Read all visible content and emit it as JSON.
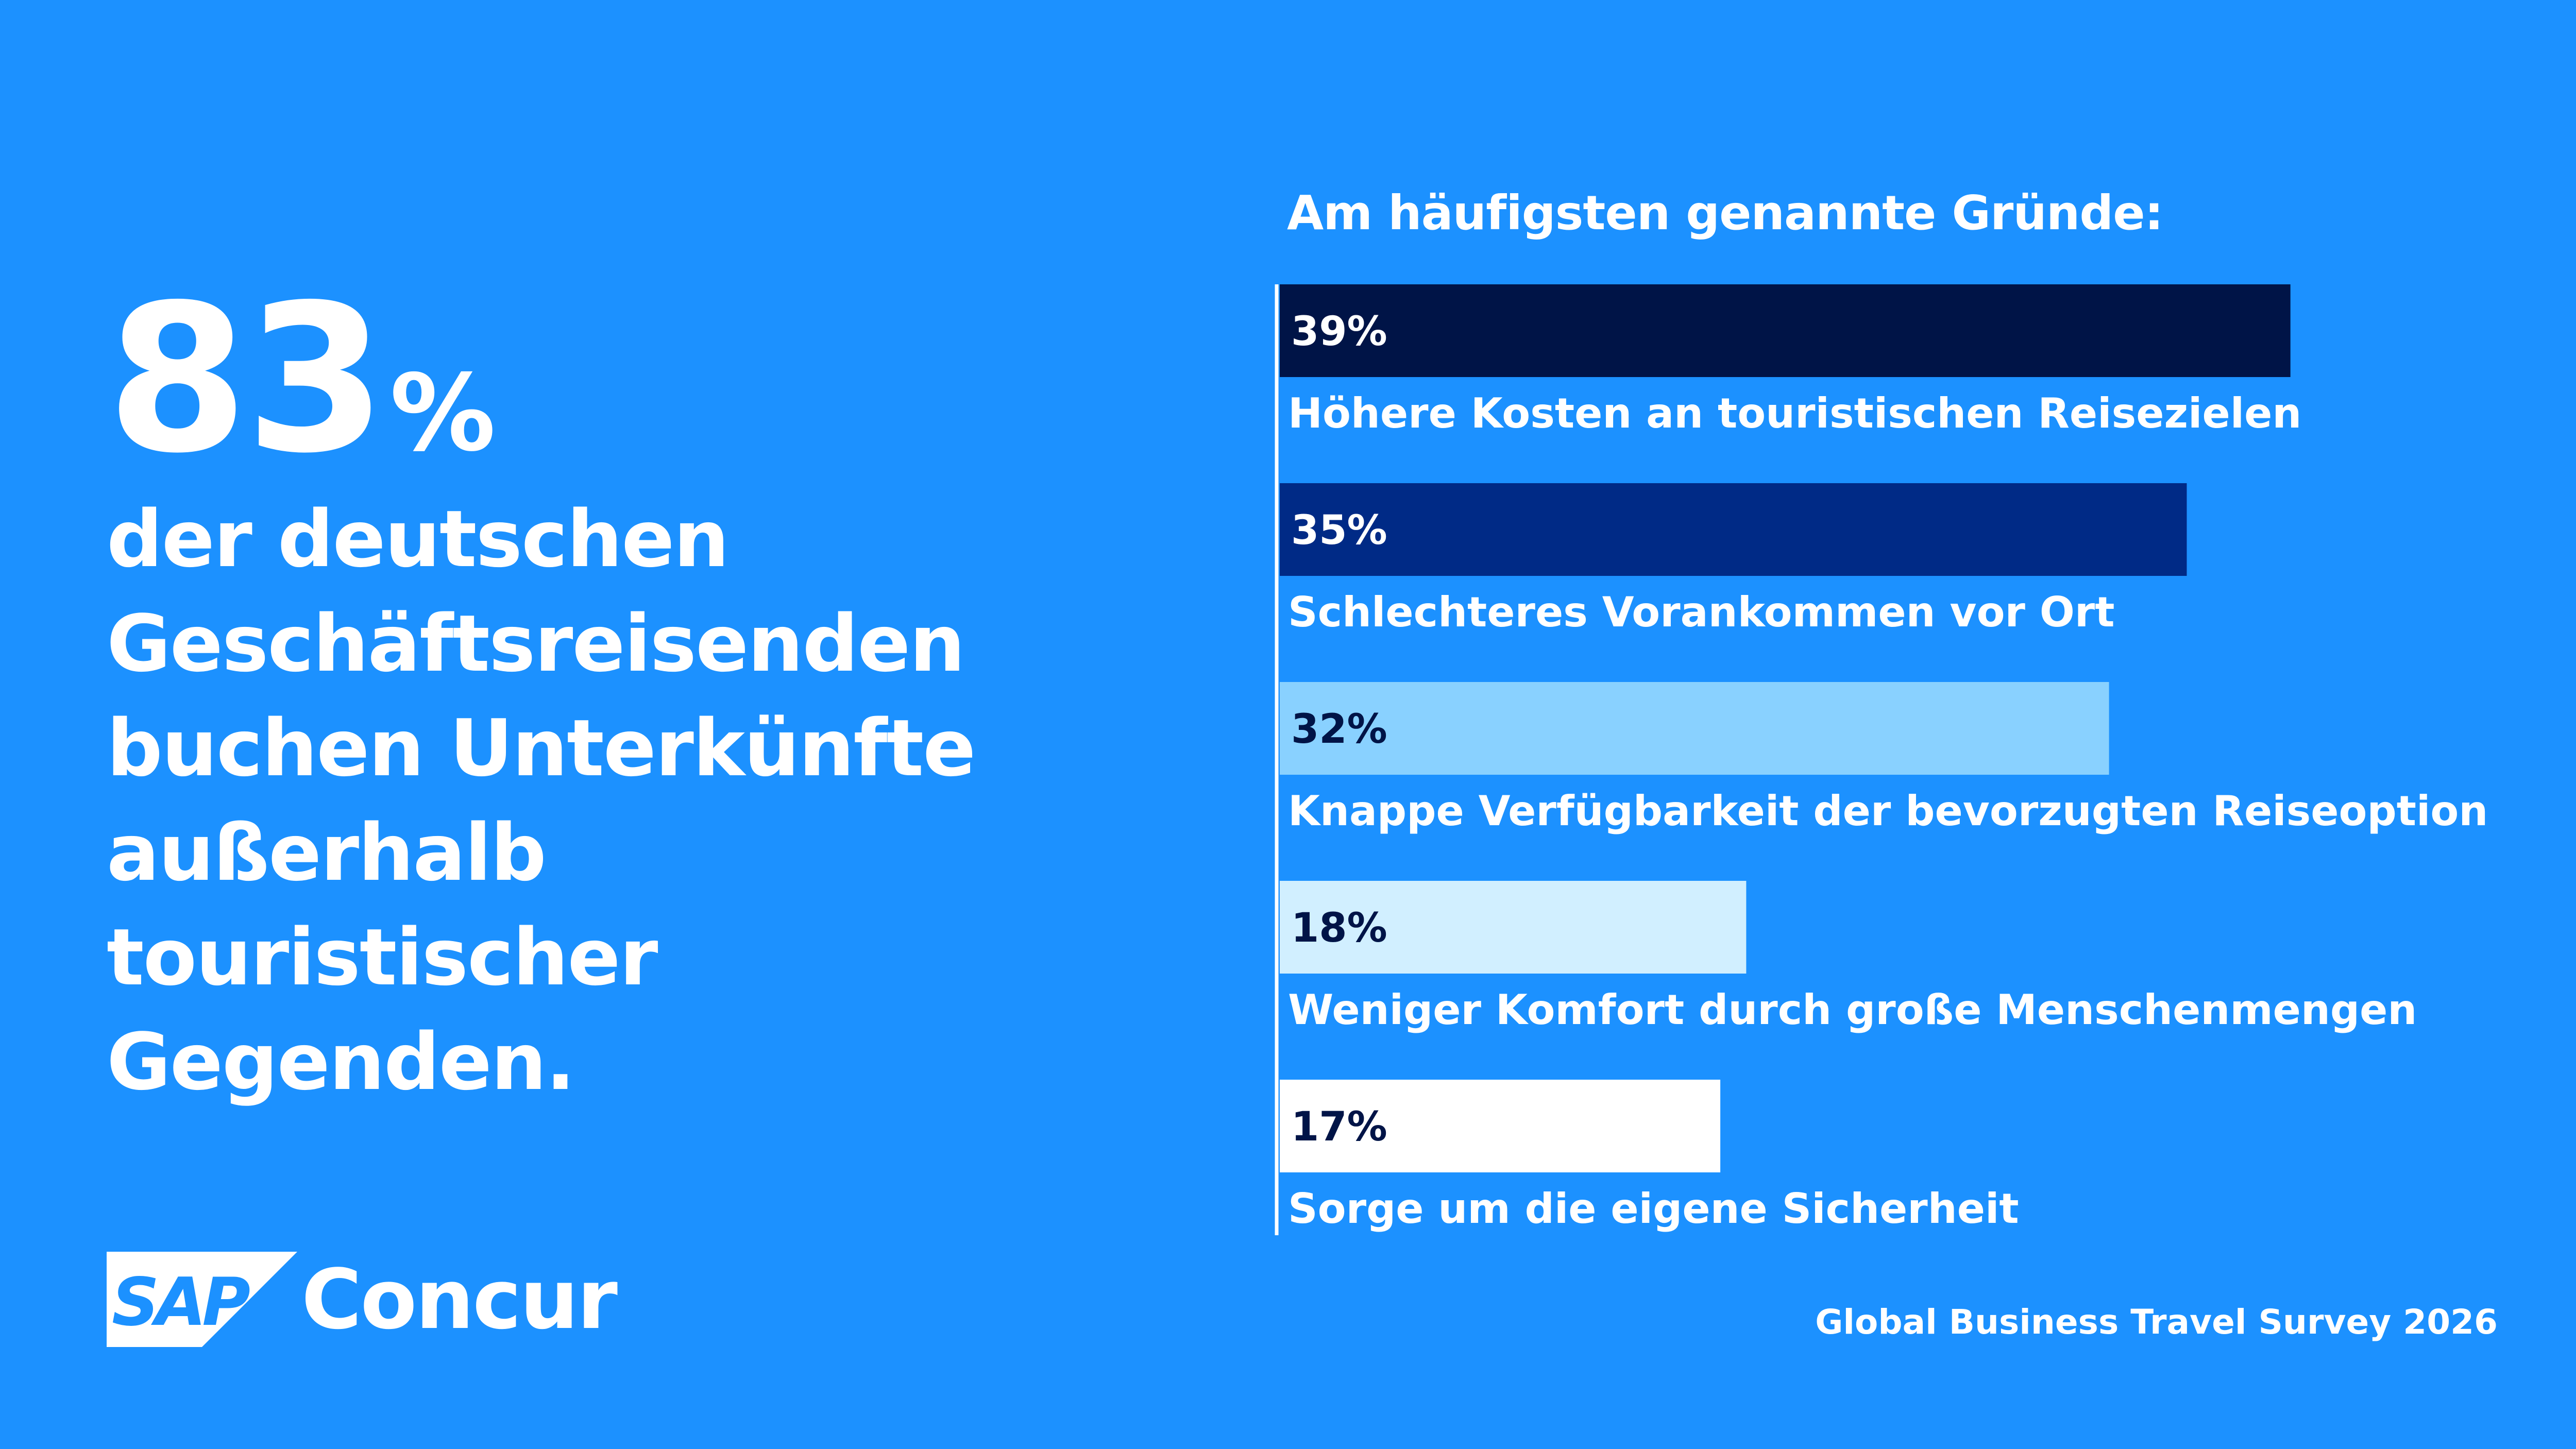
{
  "headline": {
    "number": "83",
    "unit": "%",
    "text": "der deutschen Geschäftsreisenden buchen Unterkünfte außerhalb touristischer Gegenden."
  },
  "colors": {
    "background": "#1C91FF",
    "bar_1": "#001447",
    "bar_2": "#002A86",
    "bar_3": "#89D1FF",
    "bar_4": "#D1EFFF",
    "bar_5": "#FFFFFF",
    "value_on_dark": "#FFFFFF",
    "value_on_light": "#001447"
  },
  "chart_data": {
    "type": "bar",
    "orientation": "horizontal",
    "title": "Am häufigsten genannte Gründe:",
    "categories": [
      "Höhere Kosten an touristischen Reisezielen",
      "Schlechteres Vorankommen vor Ort",
      "Knappe Verfügbarkeit der bevorzugten Reiseoption",
      "Weniger Komfort durch große Menschenmengen",
      "Sorge um die eigene Sicherheit"
    ],
    "values": [
      39,
      35,
      32,
      18,
      17
    ],
    "value_labels": [
      "39%",
      "35%",
      "32%",
      "18%",
      "17%"
    ],
    "grid": false,
    "legend": "none"
  },
  "logo": {
    "brand": "SAP",
    "product": "Concur"
  },
  "source": "Global Business Travel Survey 2026"
}
